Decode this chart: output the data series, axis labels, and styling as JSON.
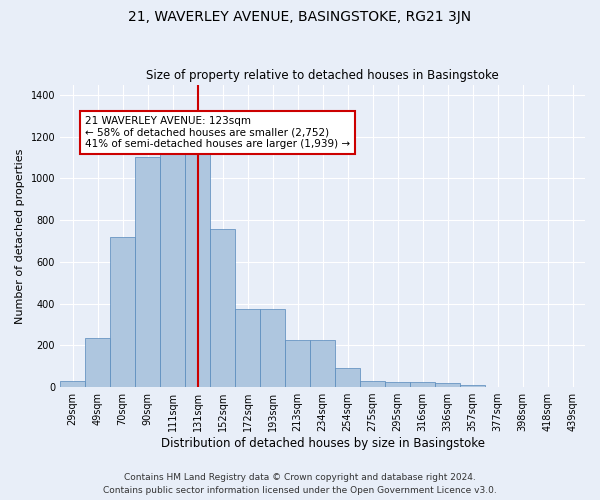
{
  "title": "21, WAVERLEY AVENUE, BASINGSTOKE, RG21 3JN",
  "subtitle": "Size of property relative to detached houses in Basingstoke",
  "xlabel": "Distribution of detached houses by size in Basingstoke",
  "ylabel": "Number of detached properties",
  "footnote1": "Contains HM Land Registry data © Crown copyright and database right 2024.",
  "footnote2": "Contains public sector information licensed under the Open Government Licence v3.0.",
  "bin_labels": [
    "29sqm",
    "49sqm",
    "70sqm",
    "90sqm",
    "111sqm",
    "131sqm",
    "152sqm",
    "172sqm",
    "193sqm",
    "213sqm",
    "234sqm",
    "254sqm",
    "275sqm",
    "295sqm",
    "316sqm",
    "336sqm",
    "357sqm",
    "377sqm",
    "398sqm",
    "418sqm",
    "439sqm"
  ],
  "bar_heights": [
    30,
    235,
    720,
    1105,
    1120,
    1125,
    760,
    375,
    375,
    225,
    225,
    90,
    30,
    25,
    25,
    18,
    10,
    0,
    0,
    0,
    0
  ],
  "bar_color": "#aec6df",
  "bar_edgecolor": "#5588bb",
  "property_line_x": 5.0,
  "property_label": "21 WAVERLEY AVENUE: 123sqm",
  "annotation_line1": "← 58% of detached houses are smaller (2,752)",
  "annotation_line2": "41% of semi-detached houses are larger (1,939) →",
  "annotation_box_color": "#ffffff",
  "annotation_box_edgecolor": "#cc0000",
  "vline_color": "#cc0000",
  "ylim": [
    0,
    1450
  ],
  "background_color": "#e8eef8",
  "plot_background": "#e8eef8",
  "title_fontsize": 10,
  "subtitle_fontsize": 8.5,
  "xlabel_fontsize": 8.5,
  "ylabel_fontsize": 8,
  "tick_fontsize": 7,
  "footnote_fontsize": 6.5,
  "annotation_fontsize": 7.5
}
